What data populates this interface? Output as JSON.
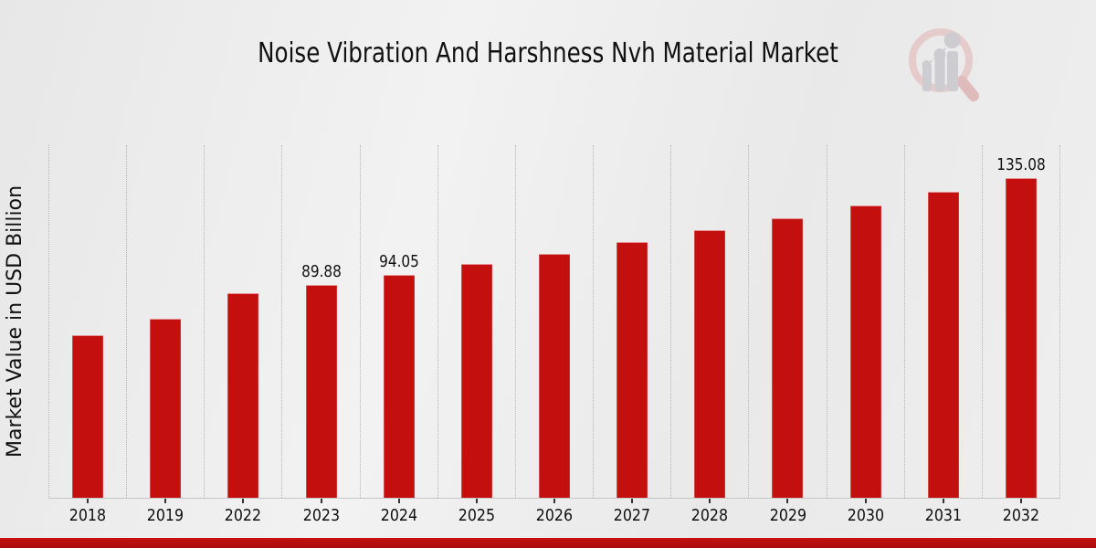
{
  "page": {
    "title": "Noise Vibration And Harshness Nvh Material Market",
    "y_axis_label": "Market Value in USD Billion",
    "colors": {
      "bar": "#c40f0f",
      "footer_banner": "#b80e0e",
      "gridline": "#b6b6b6",
      "axis_line": "#c6c6c6",
      "text": "#111111",
      "background": "#ececec"
    },
    "logo_icon": "magnifier-bar-chart-watermark"
  },
  "chart_data": {
    "type": "bar",
    "title": "Noise Vibration And Harshness Nvh Material Market",
    "xlabel": "",
    "ylabel": "Market Value in USD Billion",
    "legend_position": "none",
    "grid": "vertical dotted gridlines between categories",
    "ylim": [
      0,
      149.2
    ],
    "categories": [
      "2018",
      "2019",
      "2022",
      "2023",
      "2024",
      "2025",
      "2026",
      "2027",
      "2028",
      "2029",
      "2030",
      "2031",
      "2032"
    ],
    "values": [
      68.3,
      75.3,
      86.1,
      89.88,
      94.05,
      98.4,
      102.96,
      107.73,
      112.72,
      117.94,
      123.4,
      129.12,
      135.08
    ],
    "data_labels": [
      "",
      "",
      "",
      "89.88",
      "94.05",
      "",
      "",
      "",
      "",
      "",
      "",
      "",
      "135.08"
    ],
    "bar_color": "#c40f0f"
  }
}
